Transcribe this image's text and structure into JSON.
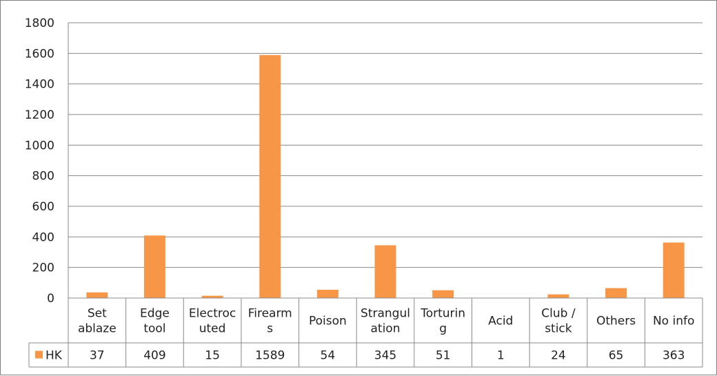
{
  "chart_data": {
    "type": "bar",
    "categories": [
      [
        "Set",
        "ablaze"
      ],
      [
        "Edge",
        "tool"
      ],
      [
        "Electroc",
        "uted"
      ],
      [
        "Firearm",
        "s"
      ],
      [
        "Poison"
      ],
      [
        "Strangul",
        "ation"
      ],
      [
        "Torturin",
        "g"
      ],
      [
        "Acid"
      ],
      [
        "Club /",
        "stick"
      ],
      [
        "Others"
      ],
      [
        "No info"
      ]
    ],
    "series": [
      {
        "name": "HK",
        "color": "#f79646",
        "values": [
          37,
          409,
          15,
          1589,
          54,
          345,
          51,
          1,
          24,
          65,
          363
        ]
      }
    ],
    "ylim": [
      0,
      1800
    ],
    "yticks": [
      0,
      200,
      400,
      600,
      800,
      1000,
      1200,
      1400,
      1600,
      1800
    ],
    "grid": true,
    "legend": "data-table"
  }
}
